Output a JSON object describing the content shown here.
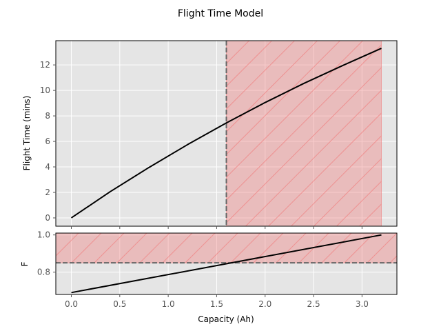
{
  "chart_data": [
    {
      "type": "line",
      "title": "Flight Time Model",
      "xlabel": "",
      "ylabel": "Flight Time (mins)",
      "xlim": [
        -0.16,
        3.36
      ],
      "ylim": [
        -0.65,
        13.9
      ],
      "xticks": [
        0.0,
        0.5,
        1.0,
        1.5,
        2.0,
        2.5,
        3.0
      ],
      "yticks": [
        0,
        2,
        4,
        6,
        8,
        10,
        12
      ],
      "grid": true,
      "background": "#e5e5e5",
      "series": [
        {
          "color": "#000000",
          "points": [
            [
              0.0,
              0.0
            ],
            [
              0.4,
              2.05
            ],
            [
              0.8,
              3.95
            ],
            [
              1.2,
              5.75
            ],
            [
              1.6,
              7.45
            ],
            [
              2.0,
              9.05
            ],
            [
              2.4,
              10.55
            ],
            [
              2.8,
              11.95
            ],
            [
              3.2,
              13.3
            ]
          ]
        }
      ],
      "threshold_line": {
        "axis": "x",
        "value": 1.6,
        "style": "dashed",
        "color": "#666666"
      },
      "shaded_region": {
        "x": [
          1.6,
          3.2
        ],
        "y": [
          -0.65,
          13.9
        ],
        "color": "#f08080",
        "hatch": "diagonal"
      }
    },
    {
      "type": "line",
      "title": "",
      "xlabel": "Capacity (Ah)",
      "ylabel": "F",
      "xlim": [
        -0.16,
        3.36
      ],
      "ylim": [
        0.68,
        1.01
      ],
      "xticks": [
        0.0,
        0.5,
        1.0,
        1.5,
        2.0,
        2.5,
        3.0
      ],
      "yticks": [
        0.8,
        1.0
      ],
      "grid": true,
      "background": "#e5e5e5",
      "series": [
        {
          "color": "#000000",
          "points": [
            [
              0.0,
              0.69
            ],
            [
              3.2,
              1.0
            ]
          ]
        }
      ],
      "threshold_line": {
        "axis": "y",
        "value": 0.85,
        "style": "dashed",
        "color": "#666666"
      },
      "shaded_region": {
        "x": [
          -0.16,
          3.36
        ],
        "y": [
          0.85,
          1.01
        ],
        "color": "#f08080",
        "hatch": "diagonal"
      }
    }
  ]
}
